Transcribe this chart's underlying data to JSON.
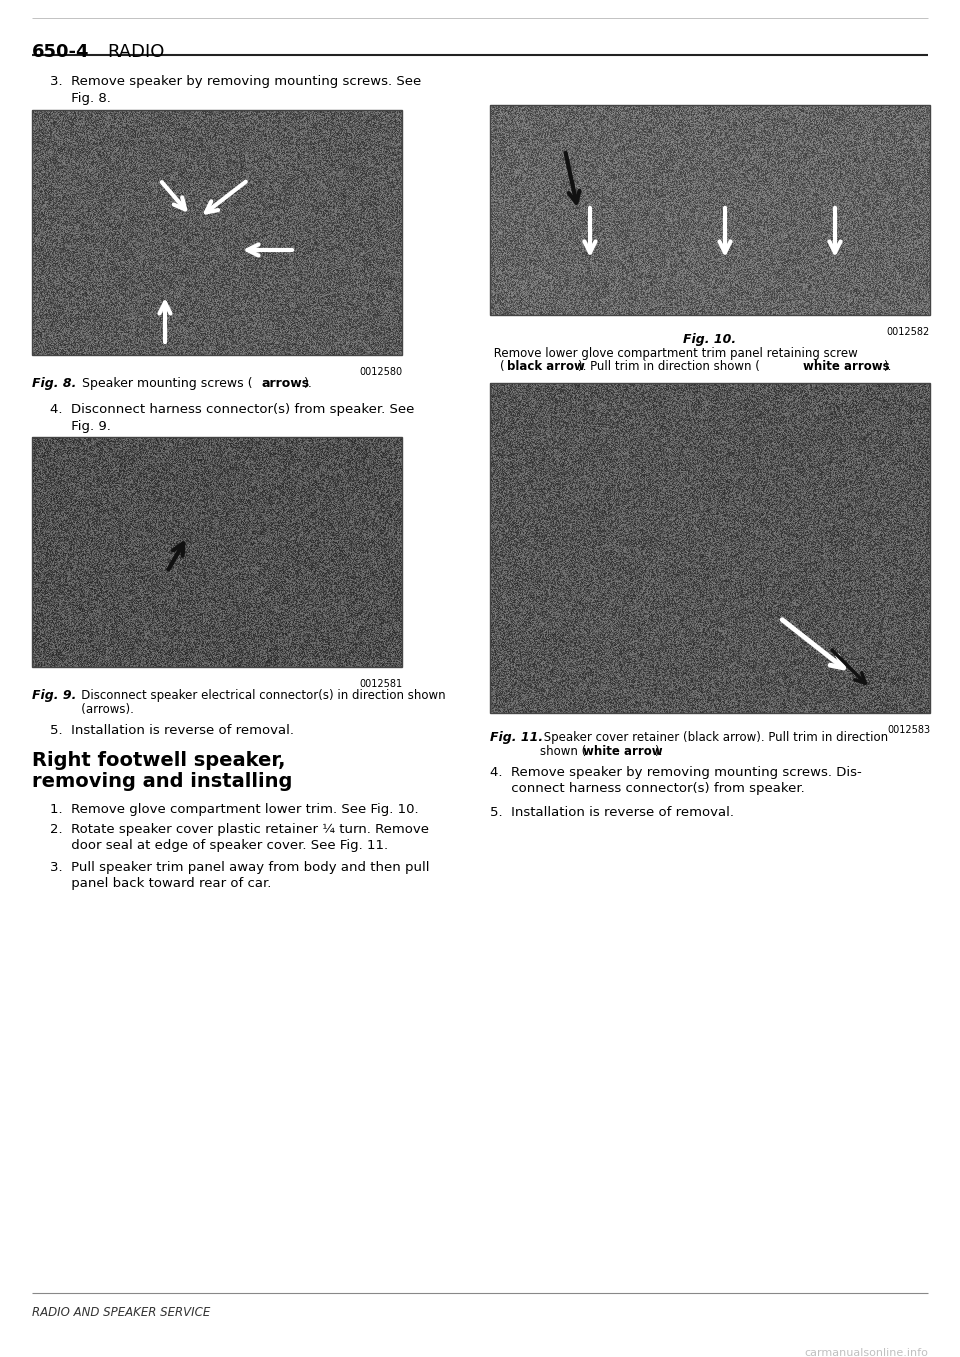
{
  "page_number": "650-4",
  "page_title": "RADIO",
  "background_color": "#ffffff",
  "step3_line1": "3.  Remove speaker by removing mounting screws. See",
  "step3_line2": "     Fig. 8.",
  "fig8_caption_bold": "Fig. 8.",
  "fig8_caption_rest": "   Speaker mounting screws (arrows).",
  "fig8_caption_arrows": "arrows",
  "fig8_code": "0012580",
  "step4_line1": "4.  Disconnect harness connector(s) from speaker. See",
  "step4_line2": "     Fig. 9.",
  "fig9_caption_bold": "Fig. 9.",
  "fig9_caption_rest_line1": "   Disconnect speaker electrical connector(s) in direction shown",
  "fig9_caption_rest_line2": "   (arrows).",
  "fig9_code": "0012581",
  "step5": "5.  Installation is reverse of removal.",
  "section_bold1": "Right footwell speaker,",
  "section_bold2": "removing and installing",
  "r_step1": "1.  Remove glove compartment lower trim. See Fig. 10.",
  "r_step2_l1": "2.  Rotate speaker cover plastic retainer ¼ turn. Remove",
  "r_step2_l2": "     door seal at edge of speaker cover. See Fig. 11.",
  "r_step3_l1": "3.  Pull speaker trim panel away from body and then pull",
  "r_step3_l2": "     panel back toward rear of car.",
  "r_step4_l1": "4.  Remove speaker by removing mounting screws. Dis-",
  "r_step4_l2": "     connect harness connector(s) from speaker.",
  "r_step5": "5.  Installation is reverse of removal.",
  "fig10_caption_bold": "Fig. 10.",
  "fig10_caption_l1": " Remove lower glove compartment trim panel retaining screw",
  "fig10_caption_l2": "(black arrow). Pull trim in direction shown (white arrows).",
  "fig10_code": "0012582",
  "fig11_caption_bold": "Fig. 11.",
  "fig11_caption_l1": " Speaker cover retainer (black arrow). Pull trim in direction",
  "fig11_caption_l2": "shown (white arrow).",
  "fig11_code": "0012583",
  "footer_italic": "RADIO AND SPEAKER SERVICE",
  "watermark": "carmanualsonline.info",
  "img_bg_dark": "#5a5a5a",
  "img_bg_med": "#6e6e6e",
  "img_bg_light": "#8a8a8a"
}
